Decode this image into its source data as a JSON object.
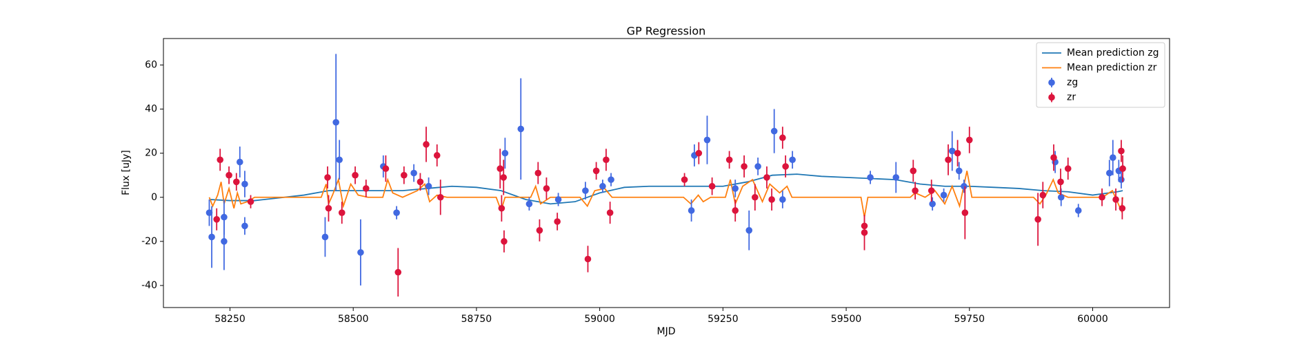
{
  "chart_data": {
    "type": "gp-errorbar",
    "title": "GP Regression",
    "x_label": "MJD",
    "y_label": "Flux [uJy]",
    "xlim": [
      58115,
      60156
    ],
    "ylim": [
      -50,
      72
    ],
    "xticks": [
      58250,
      58500,
      58750,
      59000,
      59250,
      59500,
      59750,
      60000
    ],
    "yticks": [
      -40,
      -20,
      0,
      20,
      40,
      60
    ],
    "legend": "upper right",
    "series": [
      {
        "name": "Mean prediction zg",
        "kind": "line",
        "color": "#1f77b4",
        "x": [
          58208,
          58250,
          58300,
          58400,
          58450,
          58500,
          58550,
          58600,
          58650,
          58700,
          58750,
          58800,
          58850,
          58900,
          58950,
          59000,
          59050,
          59100,
          59150,
          59200,
          59250,
          59300,
          59350,
          59400,
          59450,
          59500,
          59550,
          59600,
          59650,
          59700,
          59750,
          59800,
          59850,
          59900,
          59950,
          60000,
          60050,
          60061
        ],
        "values": [
          -1,
          -1.5,
          -1.5,
          1,
          3,
          3,
          3,
          3,
          4,
          5,
          4.5,
          3,
          -1,
          -3,
          -2,
          2,
          4.5,
          5,
          5,
          5,
          5,
          7,
          10,
          10.5,
          9.5,
          9,
          8.5,
          8,
          6,
          5,
          5,
          4.5,
          4,
          3,
          2.5,
          1,
          2.5,
          3
        ]
      },
      {
        "name": "Mean prediction zr",
        "kind": "line",
        "color": "#ff7f0e",
        "x": [
          58208,
          58215,
          58225,
          58232,
          58238,
          58248,
          58258,
          58265,
          58272,
          58285,
          58300,
          58435,
          58445,
          58450,
          58458,
          58470,
          58480,
          58495,
          58510,
          58530,
          58560,
          58570,
          58580,
          58600,
          58630,
          58645,
          58655,
          58670,
          58690,
          58790,
          58800,
          58808,
          58820,
          58860,
          58870,
          58880,
          58900,
          58960,
          58975,
          58990,
          59010,
          59025,
          59170,
          59185,
          59200,
          59210,
          59225,
          59255,
          59265,
          59275,
          59290,
          59310,
          59330,
          59345,
          59365,
          59380,
          59390,
          59530,
          59537,
          59544,
          59630,
          59640,
          59660,
          59680,
          59700,
          59715,
          59730,
          59745,
          59755,
          59880,
          59893,
          59905,
          59920,
          59930,
          59950,
          60020,
          60040,
          60058,
          60061
        ],
        "values": [
          0,
          -4,
          1,
          7,
          -3,
          4,
          -5,
          2,
          -3,
          -2,
          0,
          0,
          6,
          -3,
          1,
          8,
          -4,
          6,
          1,
          0,
          0,
          8,
          2,
          0,
          3,
          6,
          -2,
          1,
          0,
          0,
          -6,
          0,
          0,
          0,
          5,
          -3,
          0,
          0,
          -4,
          3,
          4,
          0,
          0,
          -3,
          1,
          -2,
          0,
          0,
          8,
          -3,
          5,
          8,
          -2,
          6,
          2,
          5,
          0,
          0,
          -9,
          0,
          0,
          2,
          0,
          3,
          -3,
          5,
          -4,
          12,
          0,
          0,
          -3,
          1,
          8,
          2,
          0,
          0,
          3,
          -6,
          0
        ]
      },
      {
        "name": "zg",
        "kind": "errorbar",
        "color": "#4169e1",
        "x": [
          58208,
          58213,
          58238,
          58238,
          58270,
          58280,
          58280,
          58443,
          58465,
          58472,
          58515,
          58561,
          58588,
          58623,
          58653,
          58840,
          58808,
          58857,
          58916,
          58971,
          59006,
          59023,
          59186,
          59192,
          59218,
          59275,
          59303,
          59321,
          59354,
          59371,
          59391,
          59549,
          59601,
          59675,
          59698,
          59715,
          59729,
          59739,
          59924,
          59936,
          59971,
          60034,
          60041,
          60053,
          60058
        ],
        "values": [
          -7,
          -18,
          -9,
          -20,
          16,
          6,
          -13,
          -18,
          34,
          17,
          -25,
          14,
          -7,
          11,
          5,
          31,
          20,
          -3,
          -1,
          3,
          5,
          8,
          -6,
          19,
          26,
          4,
          -15,
          14,
          30,
          -1,
          17,
          9,
          9,
          -3,
          1,
          21,
          12,
          5,
          16,
          0,
          -6,
          11,
          18,
          12,
          8
        ],
        "errors": [
          6,
          14,
          8,
          13,
          7,
          6,
          4,
          9,
          31,
          9,
          15,
          5,
          3,
          4,
          4,
          23,
          7,
          3,
          3,
          4,
          3,
          3,
          5,
          5,
          11,
          4,
          9,
          4,
          10,
          4,
          4,
          3,
          7,
          3,
          3,
          9,
          4,
          3,
          5,
          4,
          3,
          6,
          8,
          5,
          4
        ]
      },
      {
        "name": "zr",
        "kind": "errorbar",
        "color": "#dc143c",
        "x": [
          58230,
          58223,
          58248,
          58263,
          58292,
          58448,
          58450,
          58477,
          58504,
          58526,
          58566,
          58591,
          58603,
          58636,
          58648,
          58670,
          58677,
          58798,
          58801,
          58805,
          58806,
          58875,
          58878,
          58892,
          58914,
          58976,
          58993,
          59013,
          59021,
          59172,
          59201,
          59228,
          59263,
          59275,
          59293,
          59315,
          59339,
          59349,
          59371,
          59377,
          59537,
          59537,
          59636,
          59640,
          59673,
          59707,
          59726,
          59741,
          59750,
          59889,
          59899,
          59921,
          59935,
          59950,
          60019,
          60047,
          60058,
          60061,
          60060
        ],
        "values": [
          17,
          -10,
          10,
          7,
          -2,
          9,
          -5,
          -7,
          10,
          4,
          13,
          -34,
          10,
          7,
          24,
          19,
          0,
          13,
          -5,
          9,
          -20,
          11,
          -15,
          4,
          -11,
          -28,
          12,
          17,
          -7,
          8,
          20,
          5,
          17,
          -6,
          14,
          0,
          9,
          -1,
          27,
          14,
          -13,
          -16,
          12,
          3,
          3,
          17,
          20,
          -7,
          26,
          -10,
          1,
          18,
          7,
          13,
          0,
          -1,
          21,
          13,
          -5
        ],
        "errors": [
          5,
          5,
          4,
          4,
          3,
          5,
          6,
          5,
          4,
          4,
          6,
          11,
          4,
          4,
          8,
          5,
          8,
          9,
          6,
          8,
          5,
          5,
          5,
          5,
          4,
          6,
          4,
          5,
          5,
          3,
          5,
          4,
          4,
          5,
          5,
          6,
          5,
          5,
          5,
          5,
          5,
          8,
          5,
          4,
          5,
          7,
          6,
          12,
          6,
          12,
          6,
          6,
          6,
          5,
          4,
          5,
          5,
          6,
          5
        ]
      }
    ]
  }
}
